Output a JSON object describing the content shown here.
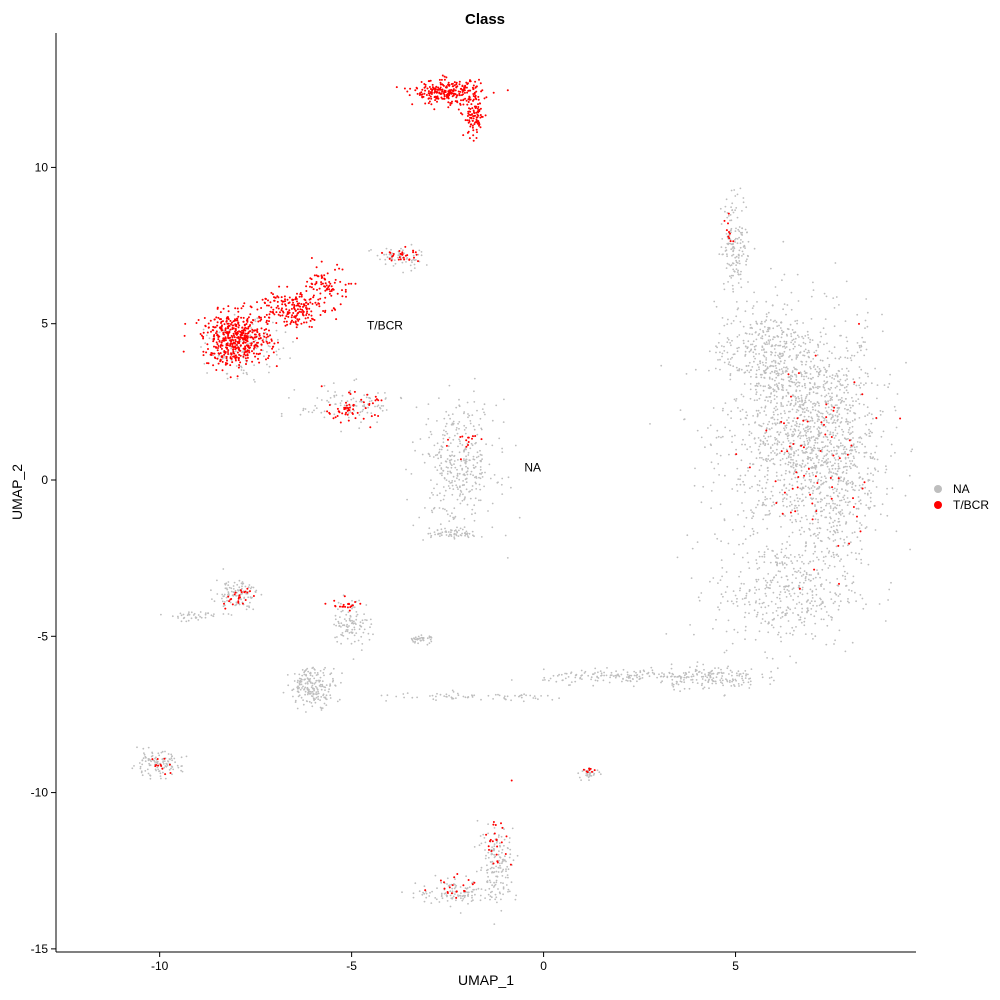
{
  "chart_data": {
    "type": "scatter",
    "title": "Class",
    "xlabel": "UMAP_1",
    "ylabel": "UMAP_2",
    "xlim": [
      -12.7,
      9.7
    ],
    "ylim": [
      -15.1,
      14.3
    ],
    "xticks": [
      -10,
      -5,
      0,
      5
    ],
    "yticks": [
      -15,
      -10,
      -5,
      0,
      5,
      10
    ],
    "grid": false,
    "legend_position": "right",
    "legend": [
      {
        "label": "NA",
        "color": "#bebebe"
      },
      {
        "label": "T/BCR",
        "color": "#ff0000"
      }
    ],
    "annotations": [
      {
        "text": "T/BCR",
        "x": -4.6,
        "y": 4.95
      },
      {
        "text": "NA",
        "x": -0.5,
        "y": 0.4
      }
    ],
    "series": [
      {
        "name": "NA",
        "color": "#bebebe",
        "clusters": [
          {
            "cx": 6.7,
            "cy": 1.5,
            "rx": 1.9,
            "ry": 3.4,
            "n": 1400
          },
          {
            "cx": 6.3,
            "cy": -3.6,
            "rx": 1.7,
            "ry": 1.6,
            "n": 380
          },
          {
            "cx": 7.6,
            "cy": 0.3,
            "rx": 0.9,
            "ry": 3.2,
            "n": 350
          },
          {
            "cx": 5.7,
            "cy": 4.2,
            "rx": 1.1,
            "ry": 1.3,
            "n": 250
          },
          {
            "cx": 5.0,
            "cy": 7.6,
            "rx": 0.35,
            "ry": 1.4,
            "n": 150
          },
          {
            "cx": 4.3,
            "cy": -6.3,
            "rx": 1.2,
            "ry": 0.35,
            "n": 170
          },
          {
            "cx": 2.0,
            "cy": -6.3,
            "rx": 1.8,
            "ry": 0.2,
            "n": 140
          },
          {
            "cx": -1.8,
            "cy": -6.95,
            "rx": 2.5,
            "ry": 0.12,
            "n": 70
          },
          {
            "cx": -2.2,
            "cy": 0.5,
            "rx": 0.9,
            "ry": 1.8,
            "n": 350
          },
          {
            "cx": -2.4,
            "cy": -1.7,
            "rx": 0.6,
            "ry": 0.15,
            "n": 60
          },
          {
            "cx": -5.0,
            "cy": 2.4,
            "rx": 1.2,
            "ry": 0.55,
            "n": 100
          },
          {
            "cx": -3.8,
            "cy": 7.1,
            "rx": 0.6,
            "ry": 0.35,
            "n": 60
          },
          {
            "cx": -7.8,
            "cy": 4.2,
            "rx": 0.9,
            "ry": 0.8,
            "n": 140
          },
          {
            "cx": -6.0,
            "cy": -6.6,
            "rx": 0.55,
            "ry": 0.55,
            "n": 200
          },
          {
            "cx": -5.0,
            "cy": -4.6,
            "rx": 0.45,
            "ry": 0.7,
            "n": 100
          },
          {
            "cx": -8.0,
            "cy": -3.6,
            "rx": 0.5,
            "ry": 0.45,
            "n": 100
          },
          {
            "cx": -9.1,
            "cy": -4.35,
            "rx": 0.8,
            "ry": 0.15,
            "n": 40
          },
          {
            "cx": -10.1,
            "cy": -9.1,
            "rx": 0.6,
            "ry": 0.35,
            "n": 120
          },
          {
            "cx": -3.2,
            "cy": -5.1,
            "rx": 0.3,
            "ry": 0.12,
            "n": 40
          },
          {
            "cx": 1.2,
            "cy": -9.4,
            "rx": 0.25,
            "ry": 0.15,
            "n": 30
          },
          {
            "cx": -1.2,
            "cy": -12.2,
            "rx": 0.45,
            "ry": 1.1,
            "n": 150
          },
          {
            "cx": -2.2,
            "cy": -13.2,
            "rx": 1.0,
            "ry": 0.35,
            "n": 120
          }
        ]
      },
      {
        "name": "T/BCR",
        "color": "#ff0000",
        "clusters": [
          {
            "cx": -2.5,
            "cy": 12.4,
            "rx": 0.8,
            "ry": 0.35,
            "n": 260
          },
          {
            "cx": -1.8,
            "cy": 11.6,
            "rx": 0.25,
            "ry": 0.6,
            "n": 100
          },
          {
            "cx": -8.0,
            "cy": 4.5,
            "rx": 0.8,
            "ry": 0.75,
            "n": 500
          },
          {
            "cx": -6.6,
            "cy": 5.5,
            "rx": 0.8,
            "ry": 0.55,
            "n": 200
          },
          {
            "cx": -5.6,
            "cy": 6.2,
            "rx": 0.5,
            "ry": 0.55,
            "n": 80
          },
          {
            "cx": -5.0,
            "cy": 2.3,
            "rx": 0.6,
            "ry": 0.4,
            "n": 60
          },
          {
            "cx": -3.7,
            "cy": 7.2,
            "rx": 0.4,
            "ry": 0.2,
            "n": 30
          },
          {
            "cx": -2.0,
            "cy": 1.2,
            "rx": 0.4,
            "ry": 0.4,
            "n": 15
          },
          {
            "cx": 7.0,
            "cy": 0.5,
            "rx": 1.5,
            "ry": 3.0,
            "n": 70
          },
          {
            "cx": 4.8,
            "cy": 7.9,
            "rx": 0.2,
            "ry": 0.5,
            "n": 10
          },
          {
            "cx": -5.1,
            "cy": -4.0,
            "rx": 0.35,
            "ry": 0.2,
            "n": 20
          },
          {
            "cx": -8.0,
            "cy": -3.8,
            "rx": 0.35,
            "ry": 0.35,
            "n": 25
          },
          {
            "cx": -1.2,
            "cy": -11.5,
            "rx": 0.35,
            "ry": 0.8,
            "n": 25
          },
          {
            "cx": -2.2,
            "cy": -13.0,
            "rx": 0.6,
            "ry": 0.3,
            "n": 20
          },
          {
            "cx": -10.1,
            "cy": -9.0,
            "rx": 0.3,
            "ry": 0.3,
            "n": 12
          },
          {
            "cx": 1.2,
            "cy": -9.3,
            "rx": 0.15,
            "ry": 0.1,
            "n": 8
          }
        ]
      }
    ]
  }
}
